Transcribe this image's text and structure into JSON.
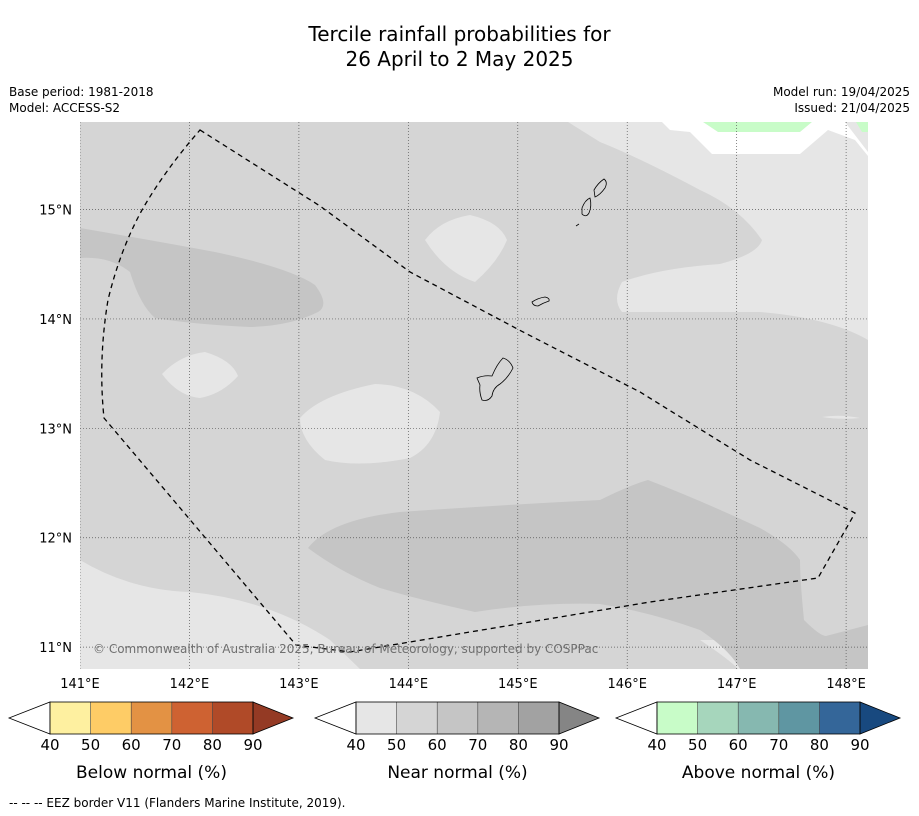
{
  "title": {
    "line1": "Tercile rainfall probabilities for",
    "line2": "26 April to 2 May 2025"
  },
  "meta": {
    "base_period": "Base period: 1981-2018",
    "model": "Model: ACCESS-S2",
    "model_run": "Model run: 19/04/2025",
    "issued": "Issued: 21/04/2025"
  },
  "map": {
    "lon_labels": [
      "141°E",
      "142°E",
      "143°E",
      "144°E",
      "145°E",
      "146°E",
      "147°E",
      "148°E"
    ],
    "lat_labels": [
      "15°N",
      "14°N",
      "13°N",
      "12°N",
      "11°N"
    ],
    "lon_range": [
      141.0,
      148.2
    ],
    "lat_range": [
      10.8,
      15.8
    ],
    "copyright": "© Commonwealth of Australia 2025, Bureau of Meteorology, supported by COSPPac"
  },
  "colorbars": [
    {
      "title": "Below normal (%)",
      "ticks": [
        "40",
        "50",
        "60",
        "70",
        "80",
        "90"
      ],
      "colors": [
        "#ffffff",
        "#fef0a0",
        "#fecc66",
        "#e39244",
        "#ce6232",
        "#b04a28",
        "#943a24"
      ]
    },
    {
      "title": "Near normal (%)",
      "ticks": [
        "40",
        "50",
        "60",
        "70",
        "80",
        "90"
      ],
      "colors": [
        "#ffffff",
        "#e6e6e6",
        "#d5d5d5",
        "#c5c5c5",
        "#b5b5b5",
        "#a2a2a2",
        "#858585"
      ]
    },
    {
      "title": "Above normal (%)",
      "ticks": [
        "40",
        "50",
        "60",
        "70",
        "80",
        "90"
      ],
      "colors": [
        "#ffffff",
        "#c8fcc8",
        "#a6d6bc",
        "#86b8b0",
        "#5f96a2",
        "#346699",
        "#18497f"
      ]
    }
  ],
  "footnote": "--  --  -- EEZ border V11 (Flanders Marine Institute, 2019).",
  "colors": {
    "near_40_50": "#e6e6e6",
    "near_50_60": "#d5d5d5",
    "near_60_70": "#c5c5c5",
    "above_40_50": "#c8fcc8"
  }
}
